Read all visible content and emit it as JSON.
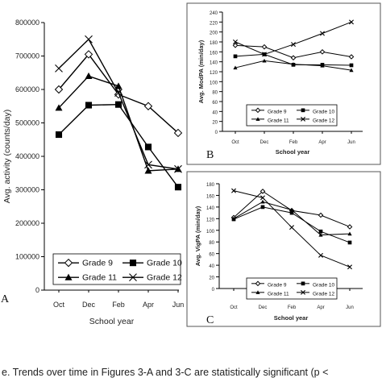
{
  "caption": "e. Trends over time in Figures 3-A and 3-C are statistically significant (p <",
  "chart_data": [
    {
      "type": "line",
      "panel_label": "A",
      "xlabel": "School year",
      "ylabel": "Avg. activity (counts/day)",
      "categories": [
        "Oct",
        "Dec",
        "Feb",
        "Apr",
        "Jun"
      ],
      "ylim": [
        0,
        800000
      ],
      "yticks": [
        0,
        100000,
        200000,
        300000,
        400000,
        500000,
        600000,
        700000,
        800000
      ],
      "ytick_labels": [
        "0",
        "100000",
        "200000",
        "300000",
        "400000",
        "500000",
        "600000",
        "700000",
        "800000"
      ],
      "legend_position": "bottom-left",
      "series": [
        {
          "name": "Grade 9",
          "marker": "diamond-open",
          "values": [
            600000,
            705000,
            585000,
            550000,
            470000
          ]
        },
        {
          "name": "Grade 10",
          "marker": "square",
          "values": [
            465000,
            553000,
            555000,
            428000,
            308000
          ]
        },
        {
          "name": "Grade 11",
          "marker": "triangle",
          "values": [
            545000,
            640000,
            610000,
            357000,
            362000
          ]
        },
        {
          "name": "Grade 12",
          "marker": "x",
          "values": [
            663000,
            750000,
            590000,
            375000,
            362000
          ]
        }
      ]
    },
    {
      "type": "line",
      "panel_label": "B",
      "xlabel": "School year",
      "ylabel": "Avg. ModPA (min/day)",
      "categories": [
        "Oct",
        "Dec",
        "Feb",
        "Apr",
        "Jun"
      ],
      "ylim": [
        0,
        240
      ],
      "yticks": [
        0,
        20,
        40,
        60,
        80,
        100,
        120,
        140,
        160,
        180,
        200,
        220,
        240
      ],
      "ytick_labels": [
        "0",
        "20",
        "40",
        "60",
        "80",
        "100",
        "120",
        "140",
        "160",
        "180",
        "200",
        "220",
        "240"
      ],
      "legend_position": "bottom",
      "series": [
        {
          "name": "Grade 9",
          "marker": "diamond-open",
          "values": [
            173,
            170,
            148,
            160,
            150
          ]
        },
        {
          "name": "Grade 10",
          "marker": "square",
          "values": [
            151,
            155,
            134,
            134,
            133
          ]
        },
        {
          "name": "Grade 11",
          "marker": "triangle",
          "values": [
            128,
            142,
            135,
            132,
            123
          ]
        },
        {
          "name": "Grade 12",
          "marker": "x",
          "values": [
            180,
            155,
            175,
            197,
            220
          ]
        }
      ]
    },
    {
      "type": "line",
      "panel_label": "C",
      "xlabel": "School year",
      "ylabel": "Avg. VigPA (min/day)",
      "categories": [
        "Oct",
        "Dec",
        "Feb",
        "Apr",
        "Jun"
      ],
      "ylim": [
        0,
        180
      ],
      "yticks": [
        0,
        20,
        40,
        60,
        80,
        100,
        120,
        140,
        160,
        180
      ],
      "ytick_labels": [
        "0",
        "20",
        "40",
        "60",
        "80",
        "100",
        "120",
        "140",
        "160",
        "180"
      ],
      "legend_position": "bottom",
      "series": [
        {
          "name": "Grade 9",
          "marker": "diamond-open",
          "values": [
            122,
            167,
            134,
            126,
            106
          ]
        },
        {
          "name": "Grade 10",
          "marker": "square",
          "values": [
            119,
            140,
            130,
            98,
            79
          ]
        },
        {
          "name": "Grade 11",
          "marker": "triangle",
          "values": [
            120,
            149,
            135,
            92,
            94
          ]
        },
        {
          "name": "Grade 12",
          "marker": "x",
          "values": [
            168,
            156,
            105,
            57,
            37
          ]
        }
      ]
    }
  ]
}
